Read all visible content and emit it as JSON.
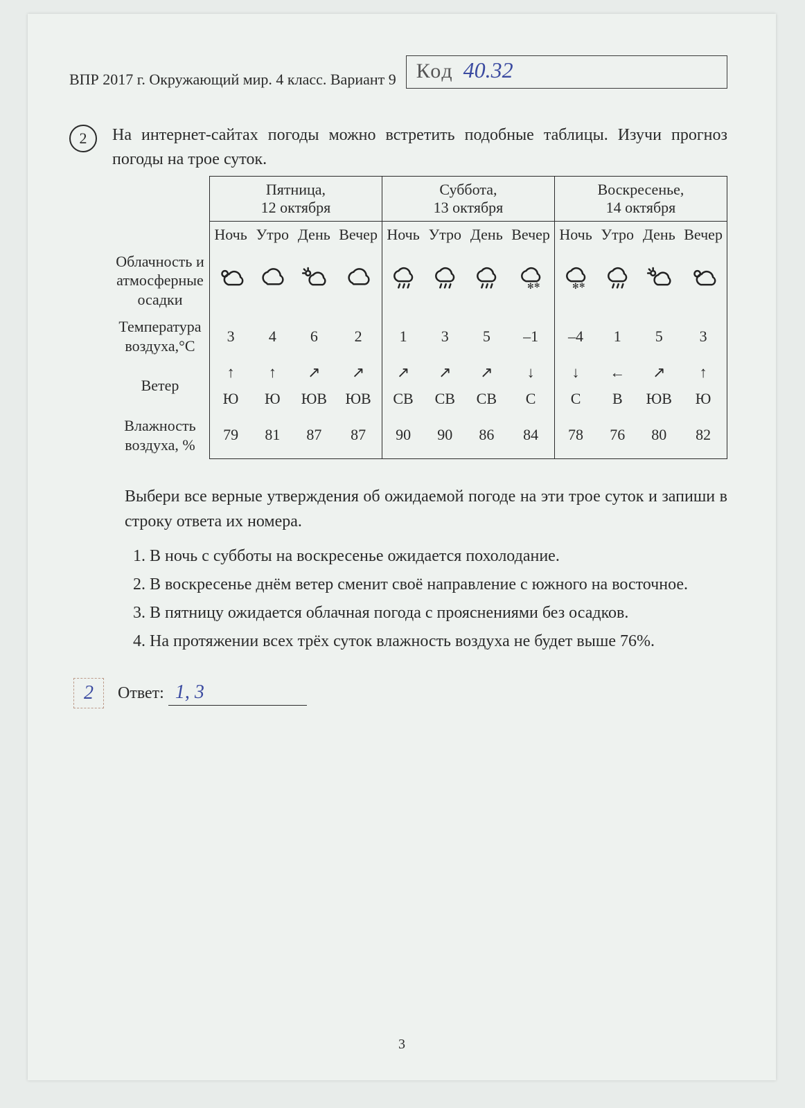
{
  "header": {
    "source_line": "ВПР 2017 г. Окружающий мир. 4 класс. Вариант 9",
    "code_label": "Код",
    "code_value": "40.32"
  },
  "question": {
    "number": "2",
    "prompt": "На интернет-сайтах погоды можно встретить подобные таблицы. Изучи прогноз погоды на трое суток."
  },
  "table": {
    "days": [
      {
        "title": "Пятница,",
        "sub": "12 октября"
      },
      {
        "title": "Суббота,",
        "sub": "13 октября"
      },
      {
        "title": "Воскресенье,",
        "sub": "14 октября"
      }
    ],
    "times_of_day": [
      "Ночь",
      "Утро",
      "День",
      "Вечер"
    ],
    "row_labels": {
      "clouds": "Облачность и атмосферные осадки",
      "temp": "Температура воздуха,°С",
      "wind": "Ветер",
      "humid": "Влажность воздуха, %"
    },
    "clouds": [
      "pc",
      "c",
      "sc",
      "c",
      "r",
      "r",
      "r",
      "sn",
      "sn",
      "r",
      "sc",
      "pc"
    ],
    "temp": [
      "3",
      "4",
      "6",
      "2",
      "1",
      "3",
      "5",
      "–1",
      "–4",
      "1",
      "5",
      "3"
    ],
    "wind_arrow": [
      "↑",
      "↑",
      "↗",
      "↗",
      "↗",
      "↗",
      "↗",
      "↓",
      "↓",
      "←",
      "↗",
      "↑"
    ],
    "wind_dir": [
      "Ю",
      "Ю",
      "ЮВ",
      "ЮВ",
      "СВ",
      "СВ",
      "СВ",
      "С",
      "С",
      "В",
      "ЮВ",
      "Ю"
    ],
    "humidity": [
      "79",
      "81",
      "87",
      "87",
      "90",
      "90",
      "86",
      "84",
      "78",
      "76",
      "80",
      "82"
    ]
  },
  "after_text": "Выбери все верные утверждения об ожидаемой погоде на эти трое суток и запиши в строку ответа их номера.",
  "options": [
    "В ночь с субботы на воскресенье ожидается похолодание.",
    "В воскресенье днём ветер сменит своё направление с южного на восточное.",
    "В пятницу ожидается облачная погода с прояснениями без осадков.",
    "На протяжении всех трёх суток влажность воздуха не будет выше 76%."
  ],
  "answer": {
    "label": "Ответ:",
    "value": "1, 3",
    "score": "2"
  },
  "page_number": "3",
  "icons": {
    "pc": "partly-cloudy",
    "c": "cloud",
    "sc": "sun-cloud",
    "r": "rain",
    "sn": "snow"
  }
}
